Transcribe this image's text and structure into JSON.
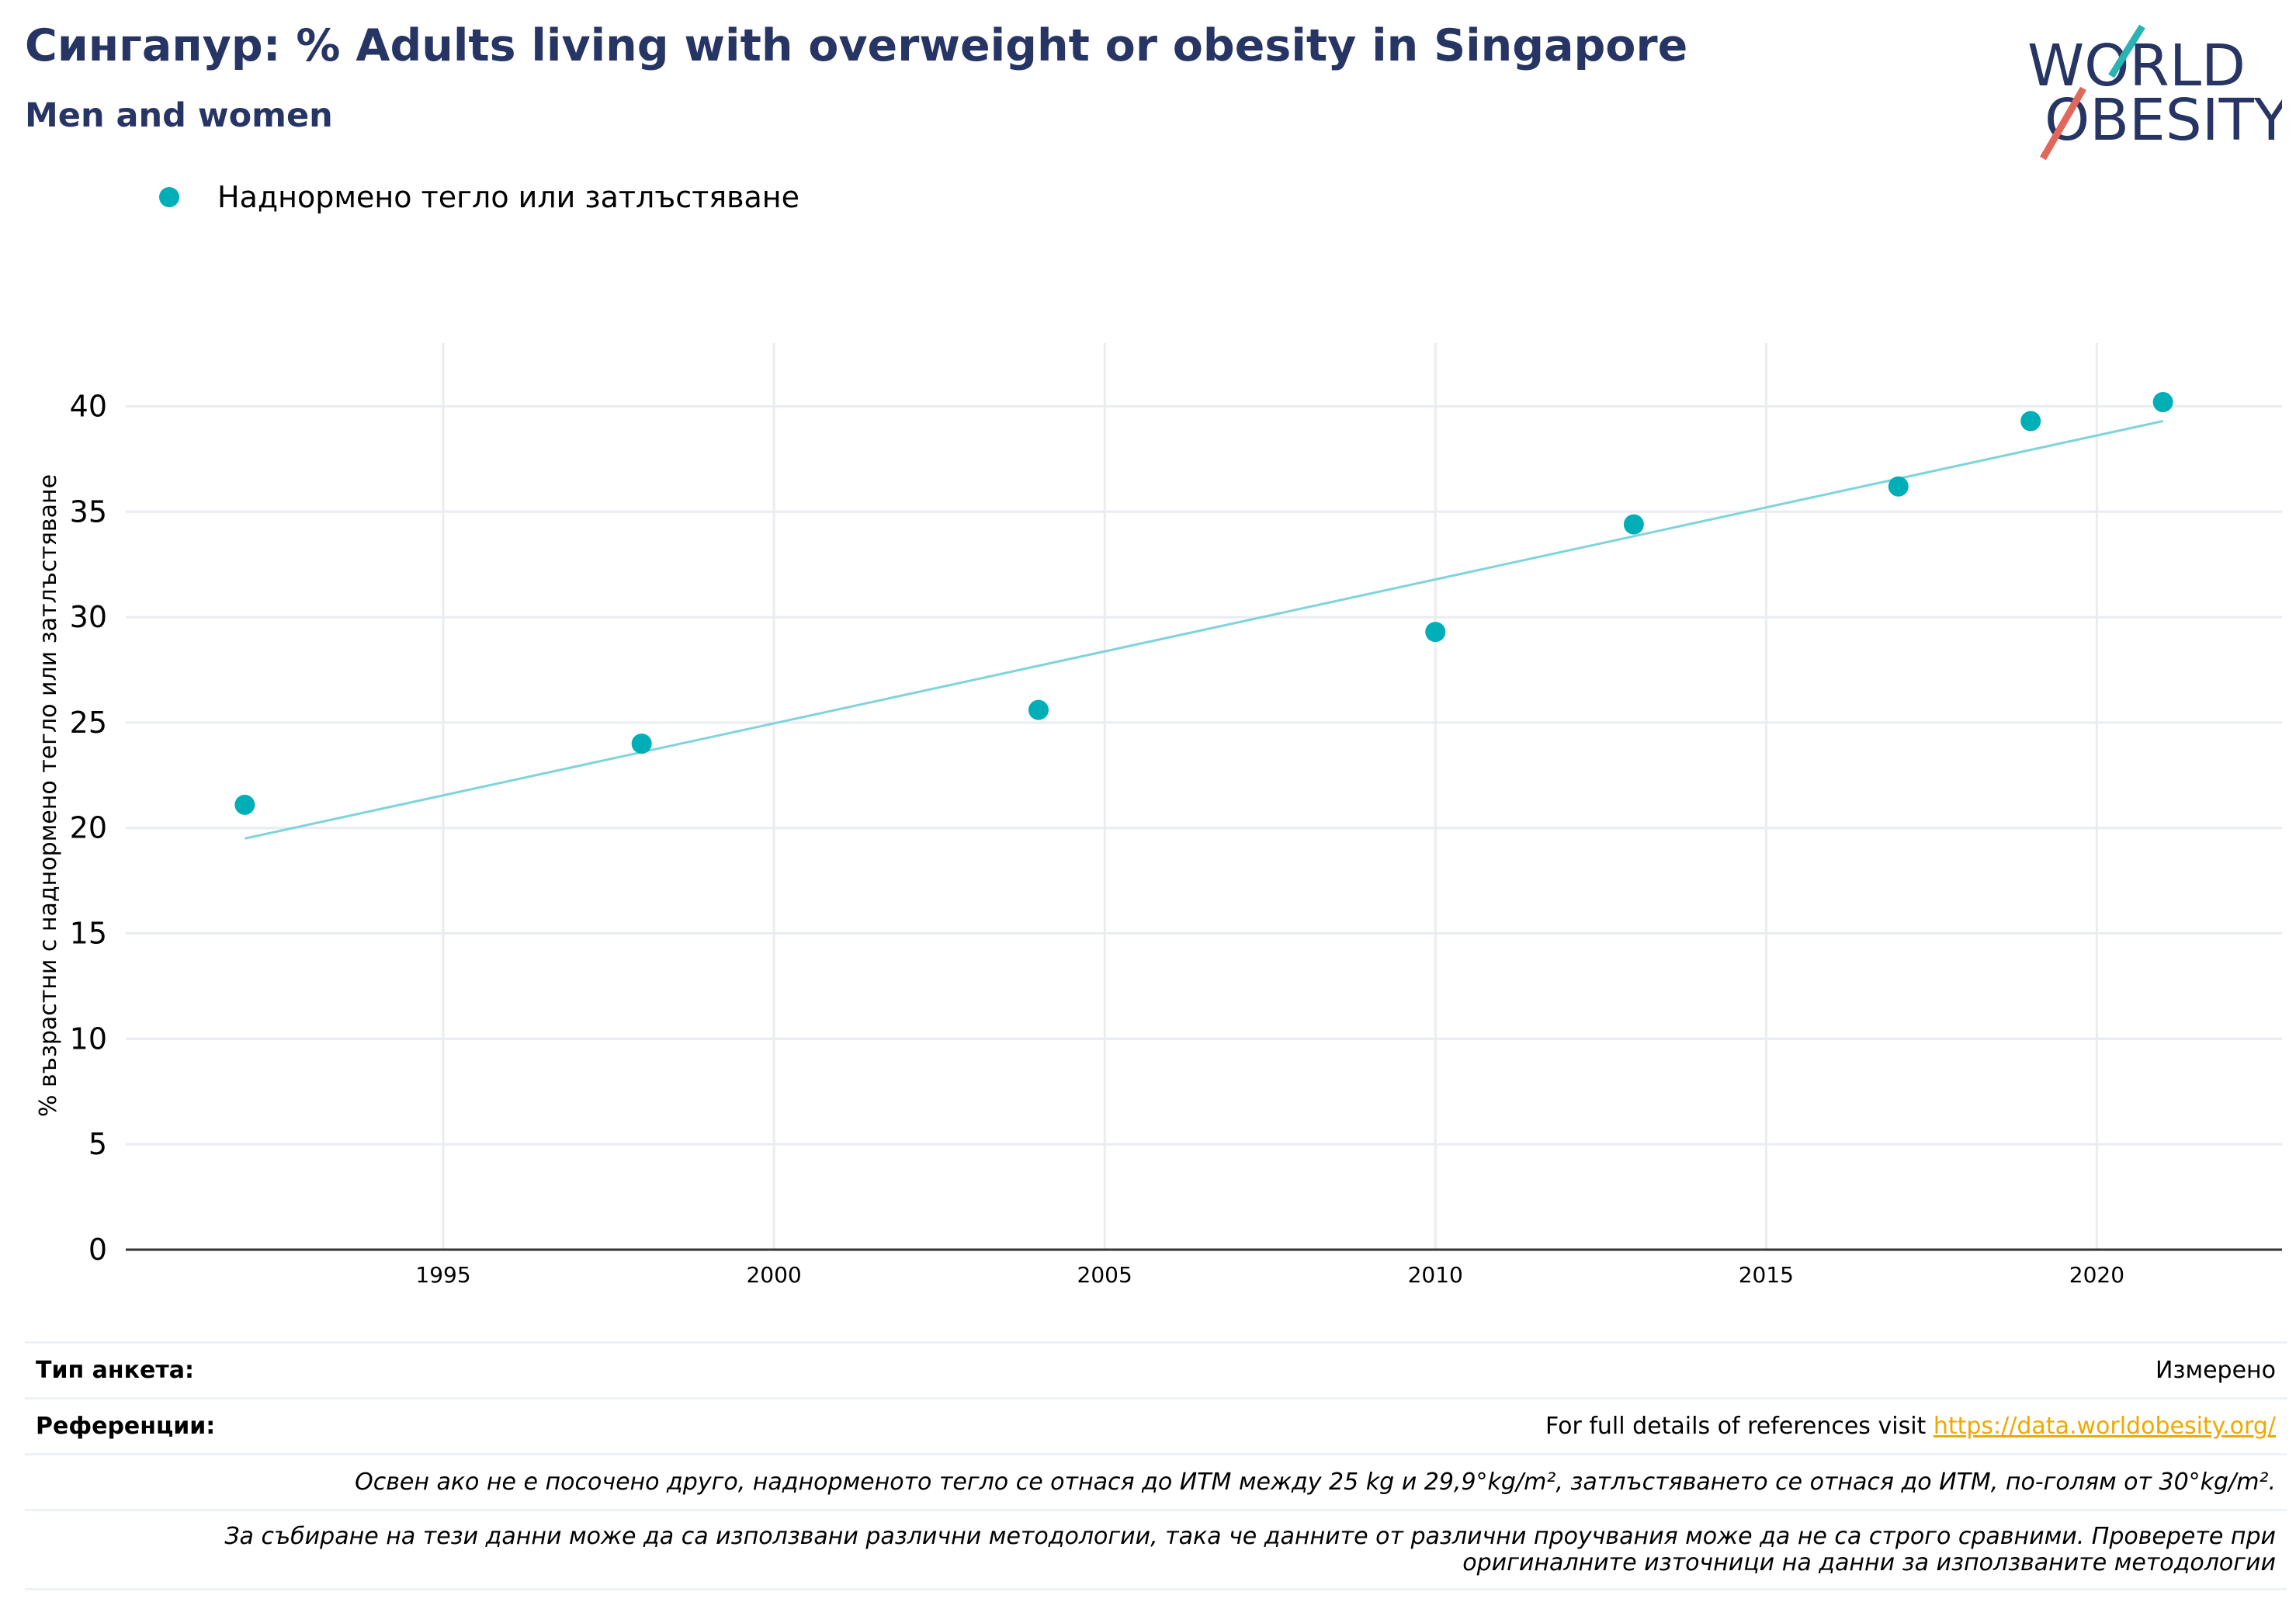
{
  "header": {
    "title": "Сингапур: % Adults living with overweight or obesity in Singapore",
    "subtitle": "Men and women"
  },
  "logo": {
    "line1": "WORLD",
    "line2": "OBESITY"
  },
  "legend": {
    "label": "Наднормено тегло или затлъстяване",
    "color": "#00aeb7"
  },
  "chart_data": {
    "type": "scatter",
    "title": "Сингапур: % Adults living with overweight or obesity in Singapore",
    "subtitle": "Men and women",
    "xlabel": "",
    "ylabel": "% възрастни с наднормено тегло или затлъстяване",
    "xlim": [
      1990.2,
      2022.8
    ],
    "ylim": [
      0,
      43
    ],
    "xticks": [
      1995,
      2000,
      2005,
      2010,
      2015,
      2020
    ],
    "yticks": [
      0,
      5,
      10,
      15,
      20,
      25,
      30,
      35,
      40
    ],
    "grid": true,
    "legend_position": "top-left",
    "series": [
      {
        "name": "Наднормено тегло или затлъстяване",
        "color": "#00aeb7",
        "x": [
          1992,
          1998,
          2004,
          2010,
          2013,
          2017,
          2019,
          2021
        ],
        "y": [
          21.1,
          24.0,
          25.6,
          29.3,
          34.4,
          36.2,
          39.3,
          40.2
        ]
      }
    ],
    "trendline": {
      "color": "#7fd4d9",
      "x": [
        1992,
        2021
      ],
      "y": [
        19.5,
        39.3
      ]
    }
  },
  "table": {
    "survey_type_label": "Тип анкета:",
    "survey_type_value": "Измерено",
    "references_label": "Референции:",
    "references_text": "For full details of references visit ",
    "references_link": "https://data.worldobesity.org/",
    "note1": "Освен ако не е посочено друго, наднорменото тегло се отнася до ИТМ между 25 kg и 29,9°kg/m², затлъстяването се отнася до ИТМ, по-голям от 30°kg/m².",
    "note2_line1": "За събиране на тези данни може да са използвани различни методологии, така че данните от различни проучвания може да не са строго сравними. Проверете при",
    "note2_line2": "оригиналните източници на данни за използваните методологии"
  }
}
